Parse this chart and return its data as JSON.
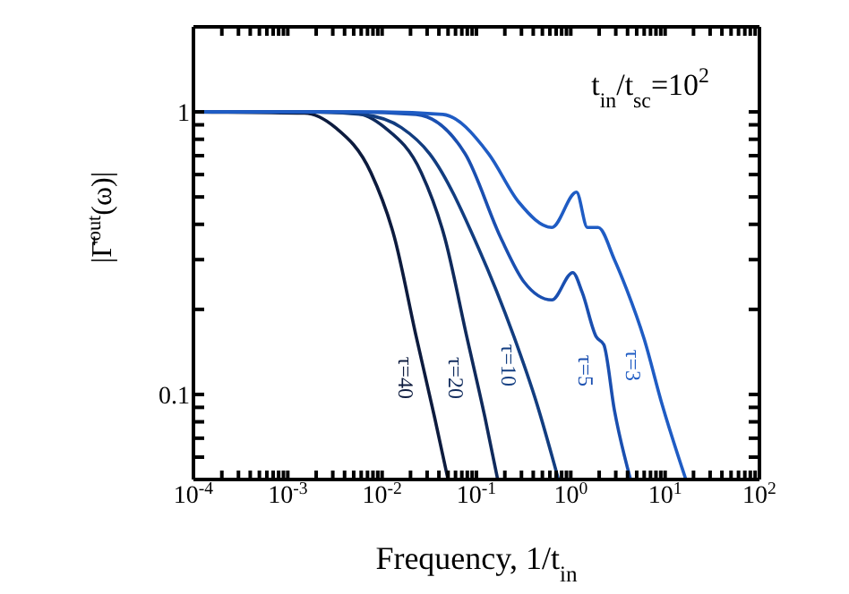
{
  "chart_data": {
    "type": "line",
    "xlabel": "Frequency, 1/t$_{in}$",
    "ylabel": "|Γ̄$^{out}$(ω)|",
    "annotations": [
      "t$_{in}$/t$_{sc}$=10$^{2}$"
    ],
    "log": "xy",
    "marker": "none",
    "line_style": "solid",
    "xlim": [
      0.0001,
      100
    ],
    "ylim": [
      0.05,
      2
    ],
    "xticks": [
      {
        "value": 0.0001,
        "label": "10$^{-4}$"
      },
      {
        "value": 0.0002,
        "label": null
      },
      {
        "value": 0.0003,
        "label": null
      },
      {
        "value": 0.0004,
        "label": null
      },
      {
        "value": 0.0005,
        "label": null
      },
      {
        "value": 0.0006,
        "label": null
      },
      {
        "value": 0.0007,
        "label": null
      },
      {
        "value": 0.0008,
        "label": null
      },
      {
        "value": 0.0009,
        "label": null
      },
      {
        "value": 0.001,
        "label": "10$^{-3}$"
      },
      {
        "value": 0.002,
        "label": null
      },
      {
        "value": 0.003,
        "label": null
      },
      {
        "value": 0.004,
        "label": null
      },
      {
        "value": 0.005,
        "label": null
      },
      {
        "value": 0.006,
        "label": null
      },
      {
        "value": 0.007,
        "label": null
      },
      {
        "value": 0.008,
        "label": null
      },
      {
        "value": 0.009,
        "label": null
      },
      {
        "value": 0.01,
        "label": "10$^{-2}$"
      },
      {
        "value": 0.02,
        "label": null
      },
      {
        "value": 0.03,
        "label": null
      },
      {
        "value": 0.04,
        "label": null
      },
      {
        "value": 0.05,
        "label": null
      },
      {
        "value": 0.06,
        "label": null
      },
      {
        "value": 0.07,
        "label": null
      },
      {
        "value": 0.08,
        "label": null
      },
      {
        "value": 0.09,
        "label": null
      },
      {
        "value": 0.1,
        "label": "10$^{-1}$"
      },
      {
        "value": 0.2,
        "label": null
      },
      {
        "value": 0.3,
        "label": null
      },
      {
        "value": 0.4,
        "label": null
      },
      {
        "value": 0.5,
        "label": null
      },
      {
        "value": 0.6,
        "label": null
      },
      {
        "value": 0.7,
        "label": null
      },
      {
        "value": 0.8,
        "label": null
      },
      {
        "value": 0.9,
        "label": null
      },
      {
        "value": 1,
        "label": "10$^{0}$"
      },
      {
        "value": 2,
        "label": null
      },
      {
        "value": 3,
        "label": null
      },
      {
        "value": 4,
        "label": null
      },
      {
        "value": 5,
        "label": null
      },
      {
        "value": 6,
        "label": null
      },
      {
        "value": 7,
        "label": null
      },
      {
        "value": 8,
        "label": null
      },
      {
        "value": 9,
        "label": null
      },
      {
        "value": 10,
        "label": "10$^{1}$"
      },
      {
        "value": 20,
        "label": null
      },
      {
        "value": 30,
        "label": null
      },
      {
        "value": 40,
        "label": null
      },
      {
        "value": 50,
        "label": null
      },
      {
        "value": 60,
        "label": null
      },
      {
        "value": 70,
        "label": null
      },
      {
        "value": 80,
        "label": null
      },
      {
        "value": 90,
        "label": null
      },
      {
        "value": 100,
        "label": "10$^{2}$"
      }
    ],
    "yticks": [
      {
        "value": 0.05,
        "label": null
      },
      {
        "value": 0.06,
        "label": null
      },
      {
        "value": 0.07,
        "label": null
      },
      {
        "value": 0.08,
        "label": null
      },
      {
        "value": 0.09,
        "label": null
      },
      0.1,
      {
        "value": 0.2,
        "label": null
      },
      {
        "value": 0.3,
        "label": null
      },
      {
        "value": 0.4,
        "label": null
      },
      {
        "value": 0.5,
        "label": null
      },
      {
        "value": 0.6,
        "label": null
      },
      {
        "value": 0.7,
        "label": null
      },
      {
        "value": 0.8,
        "label": null
      },
      {
        "value": 0.9,
        "label": null
      },
      1,
      {
        "value": 2,
        "label": null
      }
    ],
    "series": [
      {
        "name": "τ=40",
        "color": "#0d1b3e",
        "x": [
          0.0001,
          0.0015,
          0.0032,
          0.0076,
          0.0135,
          0.023,
          0.036,
          0.05
        ],
        "values": [
          1,
          0.99,
          0.88,
          0.61,
          0.36,
          0.16,
          0.083,
          0.05
        ]
      },
      {
        "name": "τ=20",
        "color": "#0f2a5c",
        "x": [
          0.0001,
          0.0016,
          0.0051,
          0.0107,
          0.026,
          0.046,
          0.079,
          0.123,
          0.168
        ],
        "values": [
          1,
          1,
          0.99,
          0.88,
          0.61,
          0.36,
          0.16,
          0.083,
          0.05
        ]
      },
      {
        "name": "τ=10",
        "color": "#123d80",
        "x": [
          0.0001,
          0.002,
          0.0062,
          0.016,
          0.032,
          0.105,
          0.25,
          0.44,
          0.74
        ],
        "values": [
          1,
          1,
          0.98,
          0.88,
          0.71,
          0.33,
          0.16,
          0.092,
          0.05
        ]
      },
      {
        "name": "τ=5",
        "color": "#1a4fb0",
        "x": [
          0.0001,
          0.005,
          0.023,
          0.076,
          0.18,
          0.32,
          0.63,
          1.05,
          1.32,
          1.86,
          2.24,
          2.9,
          4.3
        ],
        "values": [
          1,
          1,
          0.98,
          0.71,
          0.36,
          0.25,
          0.216,
          0.27,
          0.23,
          0.16,
          0.15,
          0.088,
          0.05
        ]
      },
      {
        "name": "τ=3",
        "color": "#1f5cc4",
        "x": [
          0.0001,
          0.01,
          0.044,
          0.135,
          0.28,
          0.63,
          1.15,
          1.5,
          1.95,
          2.9,
          3.9,
          6,
          9.3,
          16.6
        ],
        "values": [
          1,
          1,
          0.98,
          0.71,
          0.48,
          0.39,
          0.52,
          0.39,
          0.39,
          0.3,
          0.236,
          0.157,
          0.092,
          0.05
        ]
      }
    ]
  }
}
